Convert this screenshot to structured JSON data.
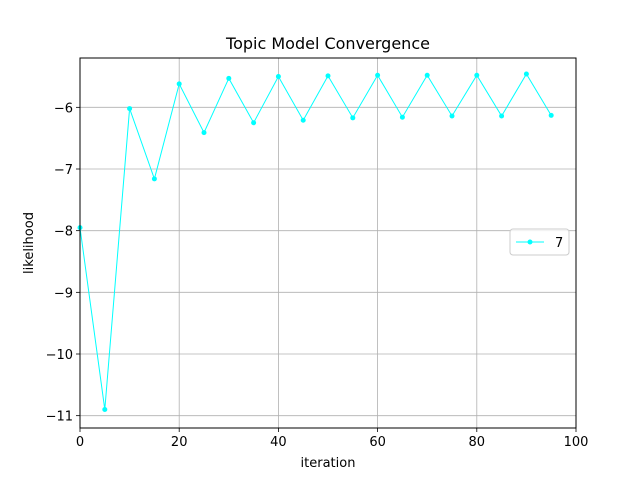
{
  "chart_data": {
    "type": "line",
    "title": "Topic Model Convergence",
    "xlabel": "iteration",
    "ylabel": "likelihood",
    "xlim": [
      0,
      100
    ],
    "ylim": [
      -11.2,
      -5.2
    ],
    "xticks": [
      0,
      20,
      40,
      60,
      80,
      100
    ],
    "yticks": [
      -11,
      -10,
      -9,
      -8,
      -7,
      -6
    ],
    "grid": true,
    "legend_position": "center-right",
    "series": [
      {
        "name": "7",
        "color": "#00ffff",
        "marker": "circle",
        "x": [
          0,
          5,
          10,
          15,
          20,
          25,
          30,
          35,
          40,
          45,
          50,
          55,
          60,
          65,
          70,
          75,
          80,
          85,
          90,
          95
        ],
        "y": [
          -7.95,
          -10.9,
          -6.02,
          -7.16,
          -5.62,
          -6.41,
          -5.53,
          -6.25,
          -5.5,
          -6.21,
          -5.49,
          -6.17,
          -5.48,
          -6.16,
          -5.48,
          -6.14,
          -5.48,
          -6.14,
          -5.46,
          -6.13
        ]
      }
    ]
  }
}
